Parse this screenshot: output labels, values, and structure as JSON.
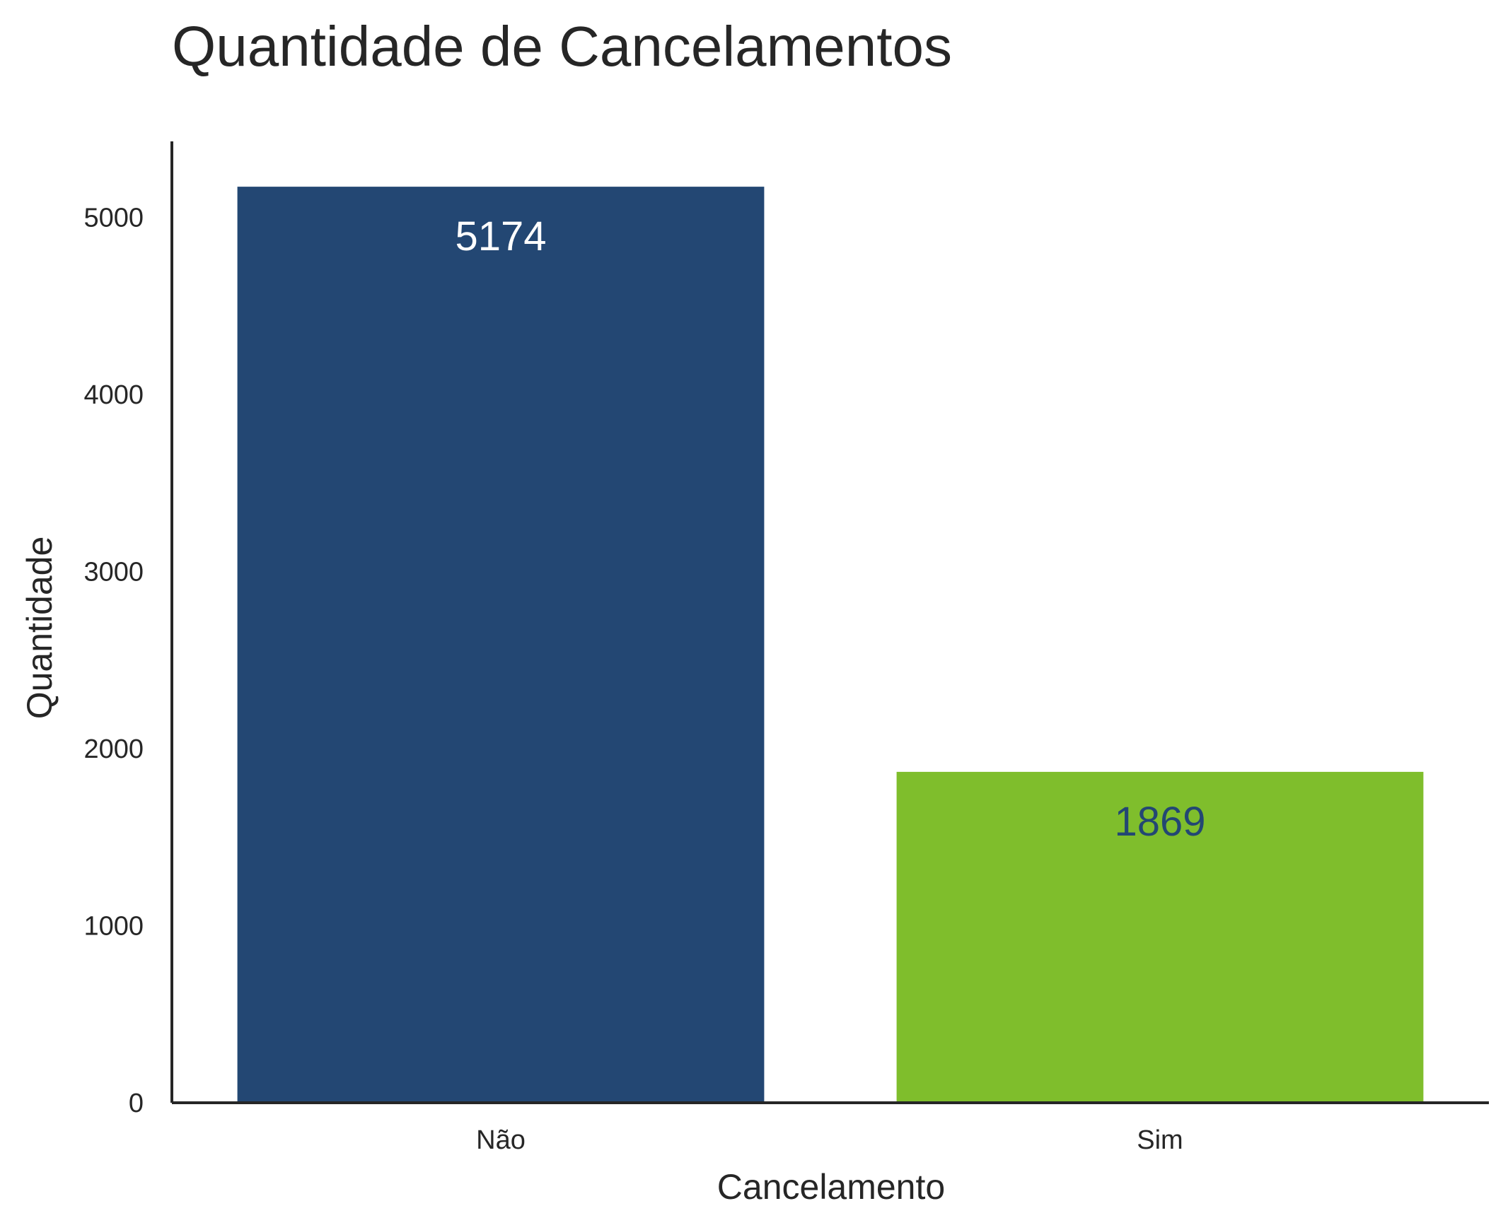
{
  "chart_data": {
    "type": "bar",
    "title": "Quantidade de Cancelamentos",
    "xlabel": "Cancelamento",
    "ylabel": "Quantidade",
    "categories": [
      "Não",
      "Sim"
    ],
    "values": [
      5174,
      1869
    ],
    "data_labels": [
      "5174",
      "1869"
    ],
    "yticks": [
      0,
      1000,
      2000,
      3000,
      4000,
      5000
    ],
    "ytick_labels": [
      "0",
      "1000",
      "2000",
      "3000",
      "4000",
      "5000"
    ],
    "ylim": [
      0,
      5430
    ],
    "grid": false,
    "bar_colors": [
      "#234773",
      "#7fbe2c"
    ],
    "label_colors": [
      "#ffffff",
      "#234773"
    ]
  }
}
